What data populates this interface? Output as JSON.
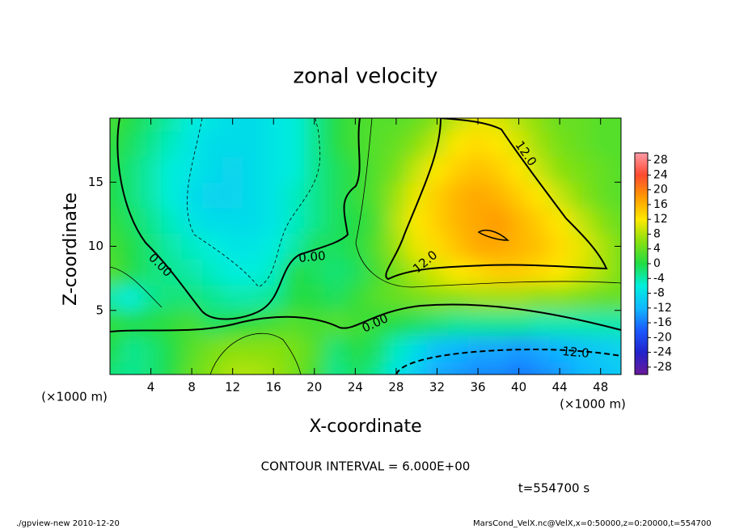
{
  "chart_data": {
    "type": "contour",
    "title": "zonal velocity",
    "x_label": "X-coordinate",
    "y_label": "Z-coordinate",
    "x_unit_labels": [
      "(×1000 m)",
      "(×1000 m)"
    ],
    "x": [
      0,
      2,
      4,
      6,
      8,
      10,
      12,
      14,
      16,
      18,
      20,
      22,
      24,
      26,
      28,
      30,
      32,
      34,
      36,
      38,
      40,
      42,
      44,
      46,
      48,
      50
    ],
    "y": [
      0,
      2,
      4,
      6,
      8,
      10,
      12,
      14,
      16,
      18,
      20
    ],
    "z": [
      [
        -2,
        -3,
        -2,
        0,
        4,
        6,
        8,
        8,
        7,
        5,
        2,
        -3,
        -1,
        -3,
        -7,
        -10,
        -13,
        -14,
        -15,
        -15,
        -16,
        -15,
        -14,
        -12,
        -11,
        -10
      ],
      [
        0,
        -3,
        -2,
        0,
        3,
        5,
        6,
        6,
        6,
        5,
        3,
        -2,
        0,
        -1,
        -5,
        -8,
        -11,
        -12,
        -13,
        -13,
        -14,
        -13,
        -12,
        -11,
        -10,
        -9
      ],
      [
        1,
        0,
        0,
        1,
        2,
        -1,
        0,
        1,
        2,
        3,
        2,
        3,
        2,
        1,
        0,
        -1,
        -2,
        -3,
        -3,
        -3,
        -3,
        -4,
        -4,
        -4,
        -4,
        -4
      ],
      [
        -4,
        -6,
        -3,
        -2,
        -2,
        -3,
        -4,
        -4,
        -3,
        0,
        0,
        -1,
        1,
        3,
        4,
        5,
        6,
        6,
        7,
        7,
        7,
        6,
        6,
        5,
        4,
        4
      ],
      [
        3,
        0,
        -2,
        -3,
        -4,
        -5,
        -6,
        -6,
        -5,
        0,
        -1,
        -2,
        -1,
        2,
        5,
        8,
        10,
        12,
        13,
        14,
        14,
        13,
        12,
        10,
        8,
        5
      ],
      [
        2,
        0,
        -2,
        -4,
        -5,
        -6,
        -7,
        -7,
        -6,
        -4,
        -1,
        -1,
        0,
        3,
        7,
        11,
        13,
        15,
        17,
        17,
        16,
        15,
        13,
        11,
        8,
        5
      ],
      [
        1,
        -1,
        -3,
        -5,
        -7,
        -8,
        -8,
        -8,
        -7,
        -5,
        -3,
        -1,
        0,
        2,
        8,
        12,
        14,
        16,
        17,
        18,
        16,
        14,
        12,
        9,
        6,
        4
      ],
      [
        0,
        -2,
        -4,
        -6,
        -8,
        -9,
        -9,
        -8,
        -7,
        -5,
        -3,
        -1,
        1,
        3,
        7,
        11,
        14,
        16,
        17,
        16,
        14,
        12,
        9,
        6,
        4,
        3
      ],
      [
        0,
        -2,
        -4,
        -6,
        -7,
        -8,
        -9,
        -8,
        -7,
        -6,
        -3,
        -1,
        1,
        3,
        5,
        9,
        12,
        14,
        15,
        14,
        12,
        9,
        6,
        5,
        4,
        3
      ],
      [
        1,
        -1,
        -3,
        -5,
        -7,
        -8,
        -8,
        -8,
        -7,
        -6,
        -3,
        0,
        2,
        3,
        4,
        6,
        9,
        12,
        13,
        12,
        10,
        7,
        5,
        4,
        3,
        3
      ],
      [
        2,
        0,
        -2,
        -4,
        -6,
        -7,
        -8,
        -8,
        -7,
        -6,
        -3,
        0,
        2,
        3,
        3,
        4,
        6,
        9,
        11,
        10,
        8,
        6,
        4,
        4,
        3,
        3
      ]
    ],
    "xlim": [
      0,
      50
    ],
    "ylim": [
      0,
      20
    ],
    "xticks": [
      4,
      8,
      12,
      16,
      20,
      24,
      28,
      32,
      36,
      40,
      44,
      48
    ],
    "yticks": [
      5,
      10,
      15
    ],
    "clim": [
      -30,
      30
    ],
    "colorbar_ticks": [
      28,
      24,
      20,
      16,
      12,
      8,
      4,
      0,
      -4,
      -8,
      -12,
      -16,
      -20,
      -24,
      -28
    ],
    "colormap": [
      "#6a1a9a",
      "#2222cc",
      "#1a5aff",
      "#10b8ff",
      "#00eedd",
      "#22dd44",
      "#88e010",
      "#ffe800",
      "#ff9a00",
      "#ff4a30",
      "#ff9aa8"
    ],
    "contour_labels": [
      "0.00",
      "0.00",
      "0.00",
      "12.0",
      "12.0",
      "12.0"
    ],
    "annotations": [
      "CONTOUR INTERVAL = 6.000E+00",
      "t=554700 s"
    ],
    "footer": [
      "./gpview-new  2010-12-20",
      "MarsCond_VelX.nc@VelX,x=0:50000,z=0:20000,t=554700"
    ]
  }
}
